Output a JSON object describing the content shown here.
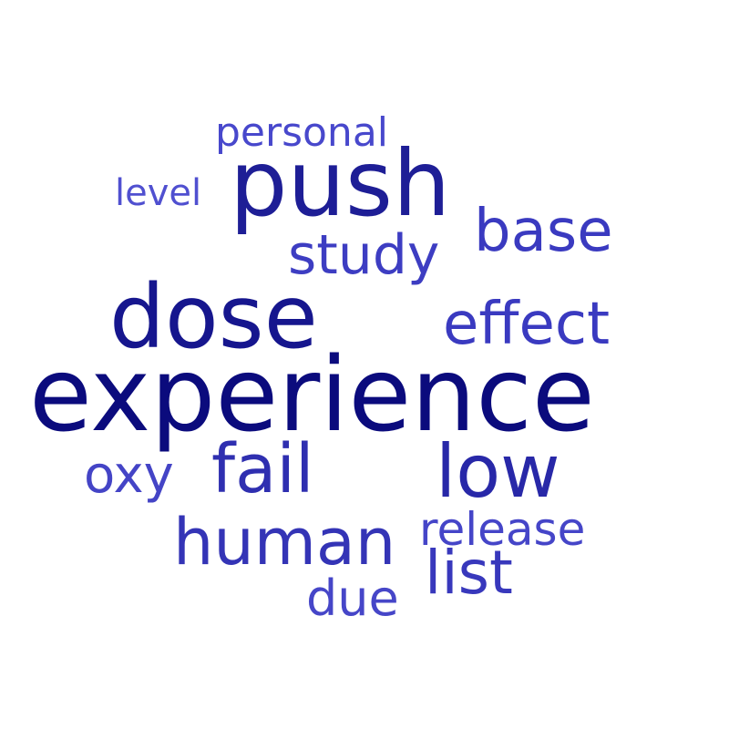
{
  "words": {
    "experience": "experience",
    "dose": "dose",
    "push": "push",
    "low": "low",
    "fail": "fail",
    "human": "human",
    "effect": "effect",
    "base": "base",
    "study": "study",
    "list": "list",
    "release": "release",
    "oxy": "oxy",
    "due": "due",
    "personal": "personal",
    "level": "level"
  },
  "colors": {
    "background": "#ffffff",
    "darkest": "#0b0b7d",
    "lightest": "#5050d0"
  }
}
